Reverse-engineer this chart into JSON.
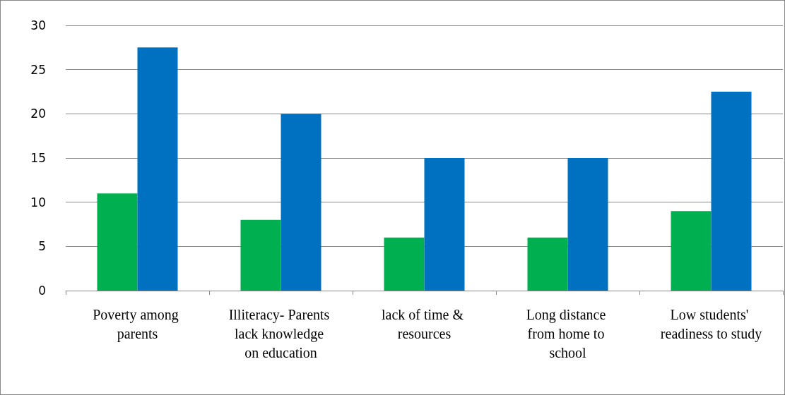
{
  "chart_data": {
    "type": "bar",
    "categories": [
      "Poverty among parents",
      "Illiteracy- Parents lack knowledge on education",
      "lack of time & resources",
      "Long distance from home to school",
      "Low students' readiness to study"
    ],
    "series": [
      {
        "color": "#00b050",
        "values": [
          11,
          8,
          6,
          6,
          9
        ]
      },
      {
        "color": "#0070c0",
        "values": [
          27.5,
          20,
          15,
          15,
          22.5
        ]
      }
    ],
    "ylim": [
      0,
      30
    ],
    "yticks": [
      0,
      5,
      10,
      15,
      20,
      25,
      30
    ],
    "grid": "y"
  }
}
